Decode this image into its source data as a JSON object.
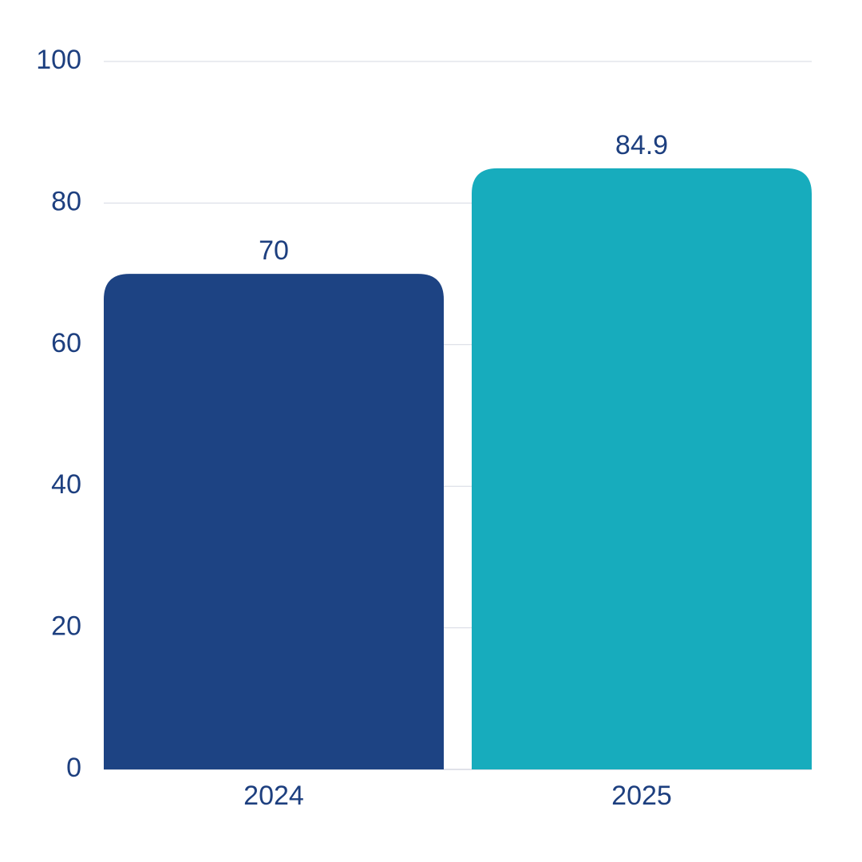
{
  "chart_data": {
    "type": "bar",
    "categories": [
      "2024",
      "2025"
    ],
    "values": [
      70,
      84.9
    ],
    "value_labels": [
      "70",
      "84.9"
    ],
    "title": "",
    "xlabel": "",
    "ylabel": "",
    "ylim": [
      0,
      100
    ],
    "yticks": [
      0,
      20,
      40,
      60,
      80,
      100
    ],
    "ytick_labels": [
      "0",
      "20",
      "40",
      "60",
      "80",
      "100"
    ],
    "grid": true,
    "legend": "none",
    "bar_colors": [
      "#1d4383",
      "#17acbd"
    ],
    "text_color": "#1d3f7f",
    "grid_color": "#d6d9e2"
  }
}
